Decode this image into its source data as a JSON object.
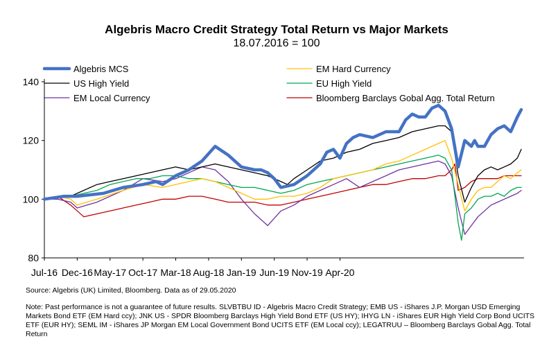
{
  "chart_data": {
    "type": "line",
    "title": "Algebris Macro Credit Strategy Total Return vs Major Markets",
    "subtitle": "18.07.2016 = 100",
    "xlabel": "",
    "ylabel": "",
    "ylim": [
      80,
      140
    ],
    "yticks": [
      "80",
      "100",
      "120",
      "140"
    ],
    "xticks": [
      "Jul-16",
      "Dec-16",
      "May-17",
      "Oct-17",
      "Mar-18",
      "Aug-18",
      "Jan-19",
      "Jun-19",
      "Nov-19",
      "Apr-20"
    ],
    "legend_position": "top",
    "grid": false,
    "series": [
      {
        "name": "Algebris  MCS",
        "color": "#4472C4",
        "width": 4.5,
        "x": [
          0,
          3,
          5,
          9,
          12,
          15,
          17,
          18,
          20,
          22,
          24,
          26,
          28,
          30,
          32,
          33,
          34,
          35,
          36,
          38,
          40,
          42,
          43,
          44,
          45,
          46,
          47,
          48,
          50,
          52,
          54,
          55,
          56,
          57,
          58,
          59,
          60,
          61,
          62,
          63,
          64,
          65,
          65.5,
          66,
          67,
          68,
          69,
          70,
          71,
          72,
          72.6
        ],
        "values": [
          100,
          101,
          101,
          102,
          104,
          105,
          106,
          105,
          108,
          110,
          113,
          118,
          115,
          111,
          110,
          110,
          109,
          107,
          104,
          105,
          108,
          112,
          116,
          117,
          114,
          119,
          121,
          122,
          121,
          123,
          123,
          127,
          129,
          128,
          128,
          131,
          132,
          130,
          124,
          111,
          120,
          118,
          120,
          118,
          118,
          122,
          124,
          125,
          123,
          128,
          130.5
        ]
      },
      {
        "name": "EM Hard Currency",
        "color": "#FFC000",
        "width": 1.3,
        "x": [
          0,
          2,
          4,
          5,
          8,
          12,
          15,
          18,
          20,
          22,
          24,
          26,
          28,
          30,
          32,
          34,
          36,
          37,
          38,
          40,
          42,
          44,
          46,
          48,
          50,
          52,
          54,
          56,
          58,
          60,
          61,
          62,
          63,
          64,
          65,
          66,
          67,
          68,
          69,
          70,
          71,
          72,
          72.6
        ],
        "values": [
          100,
          101,
          100,
          98,
          100,
          103,
          105,
          104,
          105,
          106,
          107,
          106,
          104,
          102,
          100,
          100,
          101,
          101,
          101,
          102,
          104,
          107,
          108,
          109,
          110,
          112,
          113,
          115,
          117,
          119,
          120,
          114,
          105,
          96,
          100,
          103,
          104,
          104,
          106,
          108,
          107,
          109,
          110
        ]
      },
      {
        "name": "US High Yield",
        "color": "#000000",
        "width": 1.3,
        "x": [
          0,
          2,
          4,
          6,
          8,
          10,
          12,
          14,
          16,
          18,
          20,
          22,
          24,
          26,
          28,
          30,
          32,
          34,
          36,
          37,
          38,
          40,
          42,
          44,
          46,
          48,
          50,
          52,
          54,
          56,
          58,
          60,
          61,
          62,
          63,
          64,
          65,
          66,
          67,
          68,
          69,
          70,
          71,
          72,
          72.6
        ],
        "values": [
          100,
          101,
          101,
          103,
          105,
          106,
          107,
          108,
          109,
          110,
          111,
          110,
          111,
          112,
          111,
          110,
          109,
          108,
          106,
          105,
          107,
          110,
          113,
          114,
          116,
          117,
          119,
          120,
          121,
          123,
          124,
          125,
          125,
          123,
          108,
          99,
          104,
          108,
          110,
          111,
          110,
          111,
          112,
          114,
          117
        ]
      },
      {
        "name": "EU High Yield",
        "color": "#00A651",
        "width": 1.3,
        "x": [
          0,
          2,
          4,
          6,
          8,
          10,
          12,
          14,
          16,
          18,
          20,
          22,
          24,
          26,
          28,
          30,
          32,
          34,
          36,
          38,
          40,
          42,
          44,
          46,
          48,
          50,
          52,
          54,
          56,
          58,
          60,
          61,
          62,
          63,
          63.5,
          64,
          65,
          66,
          67,
          68,
          69,
          70,
          71,
          72,
          72.6
        ],
        "values": [
          100,
          101,
          101,
          102,
          103,
          105,
          106,
          107,
          107,
          108,
          108,
          107,
          107,
          106,
          105,
          104,
          104,
          103,
          102,
          103,
          105,
          106,
          107,
          108,
          109,
          110,
          111,
          112,
          113,
          114,
          115,
          114,
          110,
          92,
          86,
          95,
          97,
          100,
          101,
          101,
          102,
          101,
          103,
          104,
          104
        ]
      },
      {
        "name": "EM Local Currency",
        "color": "#7030A0",
        "width": 1.3,
        "x": [
          0,
          2,
          4,
          5,
          8,
          12,
          15,
          18,
          20,
          22,
          24,
          26,
          28,
          30,
          32,
          34,
          36,
          38,
          40,
          42,
          44,
          46,
          48,
          50,
          52,
          54,
          56,
          58,
          60,
          61,
          62,
          63,
          64,
          65,
          66,
          67,
          68,
          69,
          70,
          71,
          72,
          72.6
        ],
        "values": [
          100,
          100,
          99,
          97,
          99,
          103,
          107,
          106,
          107,
          109,
          111,
          110,
          106,
          100,
          95,
          91,
          96,
          98,
          101,
          103,
          105,
          107,
          104,
          106,
          108,
          110,
          111,
          112,
          113,
          112,
          108,
          97,
          88,
          91,
          94,
          96,
          98,
          99,
          100,
          101,
          102,
          103
        ]
      },
      {
        "name": "Bloomberg Barclays Gobal Agg. Total Return",
        "color": "#C00000",
        "width": 1.3,
        "x": [
          0,
          2,
          4,
          6,
          8,
          10,
          12,
          14,
          16,
          18,
          20,
          22,
          24,
          26,
          28,
          30,
          32,
          34,
          36,
          38,
          40,
          42,
          44,
          46,
          48,
          50,
          52,
          54,
          56,
          58,
          60,
          61,
          62,
          62.5,
          63,
          64,
          65,
          66,
          67,
          68,
          69,
          70,
          71,
          72,
          72.6
        ],
        "values": [
          100,
          101,
          98,
          94,
          95,
          96,
          97,
          98,
          99,
          100,
          100,
          101,
          101,
          100,
          99,
          99,
          99,
          98,
          98,
          99,
          100,
          101,
          102,
          103,
          104,
          105,
          105,
          106,
          107,
          107,
          108,
          108,
          110,
          112,
          103,
          104,
          106,
          107,
          107,
          107,
          107,
          108,
          108,
          108,
          108
        ]
      }
    ],
    "x_tick_positions": [
      0,
      5,
      10,
      15,
      20,
      25,
      30,
      35,
      40,
      45
    ]
  },
  "source_text": "Source: Algebris (UK) Limited, Bloomberg. Data as of 29.05.2020",
  "note_text": "Note: Past performance is not a guarantee of future results. SLVBTBU ID - Algebris Macro Credit Strategy; EMB US -  iShares J.P. Morgan USD Emerging Markets Bond ETF (EM Hard ccy); JNK US -  SPDR Bloomberg Barclays High Yield Bond ETF (US HY); IHYG LN - iShares EUR High Yield Corp Bond UCITS ETF (EUR HY); SEML IM - iShares JP Morgan EM Local Government Bond UCITS ETF (EM Local ccy); LEGATRUU – Bloomberg Barclays Gobal Agg. Total Return"
}
